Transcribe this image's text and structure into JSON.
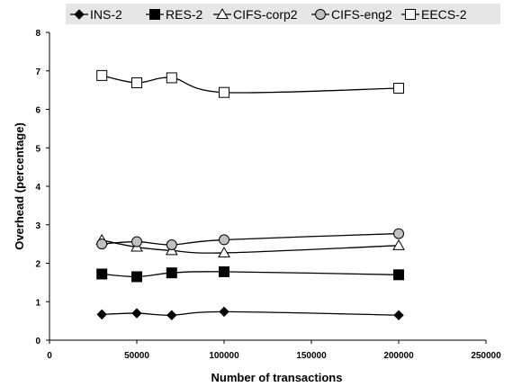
{
  "chart_data": {
    "type": "line",
    "xlabel": "Number of transactions",
    "ylabel": "Overhead (percentage)",
    "xlim": [
      0,
      250000
    ],
    "ylim": [
      0,
      8
    ],
    "x_ticks": [
      0,
      50000,
      100000,
      150000,
      200000,
      250000
    ],
    "y_ticks": [
      0,
      1,
      2,
      3,
      4,
      5,
      6,
      7,
      8
    ],
    "grid": false,
    "legend_position": "top",
    "line_color": "#000000",
    "series": [
      {
        "name": "INS-2",
        "marker": "diamond",
        "marker_fill": "#000000",
        "x": [
          30000,
          50000,
          70000,
          100000,
          200000
        ],
        "y": [
          0.67,
          0.7,
          0.65,
          0.74,
          0.65
        ]
      },
      {
        "name": "RES-2",
        "marker": "square",
        "marker_fill": "#000000",
        "x": [
          30000,
          50000,
          70000,
          100000,
          200000
        ],
        "y": [
          1.72,
          1.65,
          1.75,
          1.78,
          1.7
        ]
      },
      {
        "name": "CIFS-corp2",
        "marker": "triangle",
        "marker_fill": "#ffffff",
        "x": [
          30000,
          50000,
          70000,
          100000,
          200000
        ],
        "y": [
          2.6,
          2.42,
          2.33,
          2.27,
          2.46
        ]
      },
      {
        "name": "CIFS-eng2",
        "marker": "circle",
        "marker_fill": "#c0c0c0",
        "x": [
          30000,
          50000,
          70000,
          100000,
          200000
        ],
        "y": [
          2.5,
          2.56,
          2.48,
          2.61,
          2.77
        ]
      },
      {
        "name": "EECS-2",
        "marker": "square",
        "marker_fill": "#ffffff",
        "x": [
          30000,
          50000,
          70000,
          100000,
          200000
        ],
        "y": [
          6.88,
          6.69,
          6.82,
          6.44,
          6.55
        ]
      }
    ]
  }
}
